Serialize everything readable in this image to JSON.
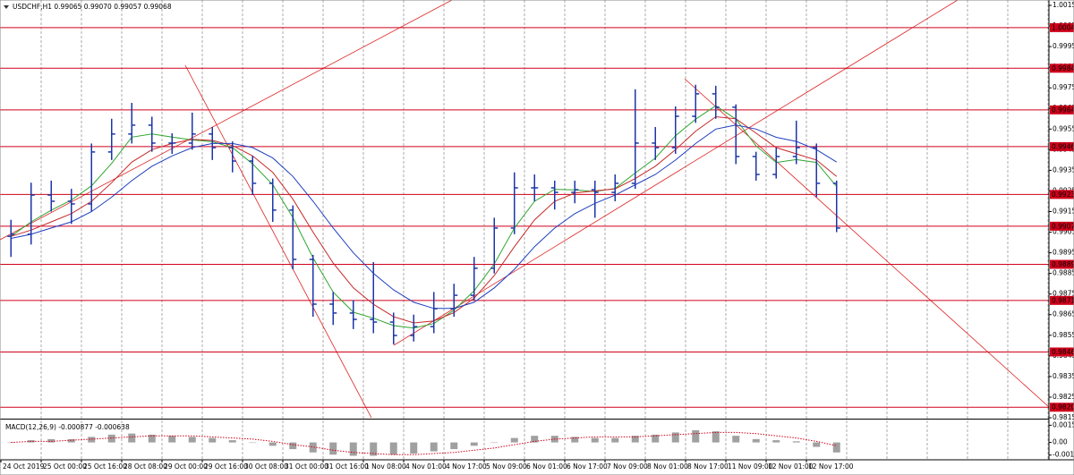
{
  "chart_data": [
    {
      "type": "ohlc",
      "title": "USDCHF,H1  0.99065 0.99070 0.99057 0.99068",
      "categories": [
        "24 Oct 2019",
        "25 Oct 00:00",
        "25 Oct 16:00",
        "28 Oct 08:00",
        "29 Oct 00:00",
        "29 Oct 16:00",
        "30 Oct 08:00",
        "31 Oct 00:00",
        "31 Oct 16:00",
        "1 Nov 08:00",
        "4 Nov 01:00",
        "4 Nov 17:00",
        "5 Nov 09:00",
        "6 Nov 01:00",
        "6 Nov 17:00",
        "7 Nov 09:00",
        "8 Nov 01:00",
        "8 Nov 17:00",
        "11 Nov 09:00",
        "12 Nov 01:00",
        "12 Nov 17:00"
      ],
      "series": [
        {
          "color": "#1c36a8",
          "open": [
            0.9903,
            0.9904,
            0.9923,
            0.992,
            0.99187,
            0.99439,
            0.99526,
            0.99569,
            0.99482,
            0.99482,
            0.99526,
            0.9946,
            0.99395,
            0.99287,
            0.99157,
            0.98918,
            0.98701,
            0.98658,
            0.98627,
            0.98614,
            0.98549,
            0.98592,
            0.98679,
            0.98744,
            0.98875,
            0.9907,
            0.99265,
            0.99265,
            0.99243,
            0.99256,
            0.99243,
            0.99287,
            0.99482,
            0.9946,
            0.99612,
            0.99721,
            0.99656,
            0.99417,
            0.9933,
            0.99417,
            0.9946,
            0.99287
          ],
          "high": [
            0.9911,
            0.9929,
            0.993,
            0.9926,
            0.9948,
            0.996,
            0.99677,
            0.9961,
            0.9953,
            0.9963,
            0.9956,
            0.9949,
            0.9942,
            0.9931,
            0.9918,
            0.9894,
            0.9876,
            0.9872,
            0.98905,
            0.9866,
            0.9865,
            0.9876,
            0.988,
            0.9893,
            0.9912,
            0.9934,
            0.9933,
            0.993,
            0.993,
            0.993,
            0.9933,
            0.99743,
            0.9956,
            0.9966,
            0.99765,
            0.9976,
            0.9967,
            0.9944,
            0.9946,
            0.99591,
            0.9948,
            0.993
          ],
          "low": [
            0.9893,
            0.9899,
            0.9915,
            0.9909,
            0.9915,
            0.994,
            0.9948,
            0.9944,
            0.9943,
            0.9945,
            0.994,
            0.9934,
            0.9923,
            0.991,
            0.9887,
            0.9864,
            0.986,
            0.9858,
            0.9856,
            0.98506,
            0.9852,
            0.9856,
            0.9864,
            0.9872,
            0.9885,
            0.9904,
            0.992,
            0.9916,
            0.9919,
            0.9912,
            0.992,
            0.9926,
            0.994,
            0.9943,
            0.9958,
            0.996,
            0.9938,
            0.993,
            0.9931,
            0.9938,
            0.9922,
            0.9905
          ],
          "close": [
            0.9904,
            0.9923,
            0.992,
            0.99187,
            0.99439,
            0.99526,
            0.99569,
            0.99482,
            0.99482,
            0.99526,
            0.9946,
            0.99395,
            0.99287,
            0.99157,
            0.98918,
            0.98701,
            0.98658,
            0.98627,
            0.98614,
            0.98549,
            0.98592,
            0.98679,
            0.98744,
            0.98875,
            0.9907,
            0.99265,
            0.99265,
            0.99243,
            0.99256,
            0.99243,
            0.99287,
            0.99482,
            0.9946,
            0.99612,
            0.99721,
            0.99656,
            0.99417,
            0.9933,
            0.99417,
            0.9946,
            0.99287,
            0.9907
          ]
        }
      ],
      "moving_averages": [
        {
          "color": "#2fa52f",
          "values": [
            0.9903,
            0.991,
            0.99157,
            0.99206,
            0.99275,
            0.99384,
            0.99511,
            0.99526,
            0.99511,
            0.99497,
            0.99489,
            0.9946,
            0.99381,
            0.9928,
            0.99121,
            0.98925,
            0.98759,
            0.98662,
            0.98633,
            0.98597,
            0.98585,
            0.98607,
            0.98672,
            0.98766,
            0.98896,
            0.9907,
            0.992,
            0.99258,
            0.99255,
            0.99247,
            0.99262,
            0.99337,
            0.9941,
            0.99518,
            0.99598,
            0.99663,
            0.99598,
            0.99468,
            0.99388,
            0.99402,
            0.99388,
            0.99272
          ]
        },
        {
          "color": "#c62828",
          "values": [
            0.9903,
            0.9906,
            0.991,
            0.9914,
            0.992,
            0.9929,
            0.9939,
            0.9945,
            0.9948,
            0.995,
            0.99495,
            0.9947,
            0.9942,
            0.9934,
            0.9921,
            0.9905,
            0.989,
            0.9878,
            0.987,
            0.9864,
            0.9861,
            0.9862,
            0.9866,
            0.9873,
            0.9884,
            0.9898,
            0.9911,
            0.992,
            0.9924,
            0.9925,
            0.9926,
            0.9931,
            0.9937,
            0.9945,
            0.9954,
            0.9961,
            0.996,
            0.9953,
            0.9946,
            0.9943,
            0.994,
            0.9932
          ]
        },
        {
          "color": "#1f3fbf",
          "values": [
            0.9902,
            0.9904,
            0.9907,
            0.991,
            0.9915,
            0.9922,
            0.993,
            0.9937,
            0.9942,
            0.9946,
            0.9948,
            0.9948,
            0.9946,
            0.9941,
            0.9932,
            0.992,
            0.9907,
            0.9895,
            0.9885,
            0.9877,
            0.9871,
            0.9868,
            0.9868,
            0.9871,
            0.9878,
            0.9887,
            0.9898,
            0.9907,
            0.9914,
            0.9919,
            0.9923,
            0.9928,
            0.9933,
            0.994,
            0.9948,
            0.9955,
            0.9957,
            0.9955,
            0.9951,
            0.9949,
            0.9945,
            0.9939
          ]
        }
      ],
      "hlines": {
        "color": "#d0021b",
        "values": [
          1.00042,
          0.99845,
          0.99643,
          0.99465,
          0.99233,
          0.99079,
          0.98894,
          0.98719,
          0.98469,
          0.98201
        ]
      },
      "ylim": [
        0.9815,
        1.00176
      ],
      "yticks": [
        {
          "value": 0.9815,
          "label": "0.98150"
        },
        {
          "value": 0.9825,
          "label": "0.98250"
        },
        {
          "value": 0.9835,
          "label": "0.98350"
        },
        {
          "value": 0.9845,
          "label": "0.98450"
        },
        {
          "value": 0.9855,
          "label": "0.98550"
        },
        {
          "value": 0.9865,
          "label": "0.98650"
        },
        {
          "value": 0.9875,
          "label": "0.98750"
        },
        {
          "value": 0.9885,
          "label": "0.98850"
        },
        {
          "value": 0.9895,
          "label": "0.98950"
        },
        {
          "value": 0.9905,
          "label": "0.99050"
        },
        {
          "value": 0.9915,
          "label": "0.99150"
        },
        {
          "value": 0.9925,
          "label": "0.99250"
        },
        {
          "value": 0.9935,
          "label": "0.99350"
        },
        {
          "value": 0.9945,
          "label": "0.99450"
        },
        {
          "value": 0.9955,
          "label": "0.99550"
        },
        {
          "value": 0.9965,
          "label": "0.99650"
        },
        {
          "value": 0.9975,
          "label": "0.99750"
        },
        {
          "value": 0.9985,
          "label": "0.99850"
        },
        {
          "value": 0.9995,
          "label": "0.99950"
        },
        {
          "value": 1.0005,
          "label": "1.00050"
        },
        {
          "value": 1.0015,
          "label": "1.00150"
        }
      ],
      "grid": "vertical"
    },
    {
      "type": "macd",
      "title": "MACD(12,26,9) -0.000877 -0.000638",
      "histogram": {
        "color": "#a0a0a0",
        "values": [
          0,
          0.0002,
          0.0003,
          0.0003,
          0.0005,
          0.0007,
          0.0008,
          0.0007,
          0.0006,
          0.0005,
          0.0004,
          0.0002,
          0,
          -0.0003,
          -0.0006,
          -0.0009,
          -0.0011,
          -0.0012,
          -0.0012,
          -0.0011,
          -0.001,
          -0.0008,
          -0.0006,
          -0.0003,
          0,
          0.0004,
          0.0006,
          0.0006,
          0.0005,
          0.0004,
          0.0004,
          0.0006,
          0.0007,
          0.0009,
          0.0011,
          0.001,
          0.0006,
          0.0003,
          0.0002,
          0.0001,
          -0.0004,
          -0.0009
        ]
      },
      "signal": {
        "color": "#d0021b",
        "values": [
          0,
          0.0001,
          0.0001,
          0.0002,
          0.0003,
          0.0004,
          0.0005,
          0.0006,
          0.0006,
          0.0006,
          0.0005,
          0.0004,
          0.0003,
          0.0001,
          -0.0002,
          -0.0004,
          -0.0007,
          -0.0009,
          -0.001,
          -0.0011,
          -0.0011,
          -0.001,
          -0.0009,
          -0.0007,
          -0.0005,
          -0.0002,
          0.0001,
          0.0003,
          0.0004,
          0.0005,
          0.0005,
          0.0005,
          0.0006,
          0.0007,
          0.0008,
          0.0009,
          0.0009,
          0.0008,
          0.0006,
          0.0004,
          0.0001,
          -0.0003
        ]
      },
      "ylim": [
        -0.0014,
        0.0019
      ],
      "yticks": [
        0.001549,
        {
          "value": 0,
          "label": "0.00"
        },
        -0.001135
      ]
    }
  ]
}
